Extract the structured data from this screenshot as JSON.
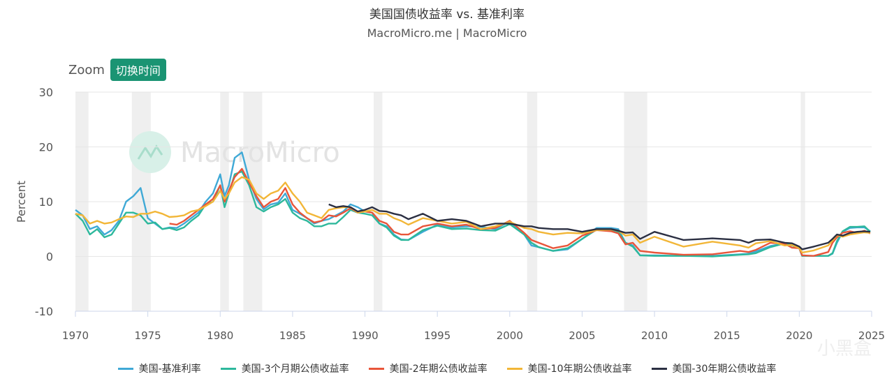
{
  "header": {
    "title": "美国国债收益率 vs. 基准利率",
    "subtitle": "MacroMicro.me | MacroMicro"
  },
  "zoom": {
    "label": "Zoom",
    "button": "切换时间"
  },
  "watermark": {
    "text": "MacroMicro"
  },
  "corner_logo": {
    "text": "小黑盒"
  },
  "chart_data": {
    "type": "line",
    "title": "美国国债收益率 vs. 基准利率",
    "xlabel": "",
    "ylabel": "Percent",
    "xlim": [
      1970,
      2025
    ],
    "ylim": [
      -10,
      30
    ],
    "x_ticks": [
      1970,
      1975,
      1980,
      1985,
      1990,
      1995,
      2000,
      2005,
      2010,
      2015,
      2020,
      2025
    ],
    "y_ticks": [
      -10,
      0,
      10,
      20,
      30
    ],
    "grid": true,
    "legend_position": "bottom",
    "recessions": [
      [
        1970.0,
        1970.9
      ],
      [
        1973.9,
        1975.2
      ],
      [
        1980.0,
        1980.6
      ],
      [
        1981.6,
        1982.9
      ],
      [
        1990.6,
        1991.2
      ],
      [
        2001.2,
        2001.9
      ],
      [
        2007.9,
        2009.5
      ],
      [
        2020.1,
        2020.4
      ]
    ],
    "series": [
      {
        "name": "美国-基准利率",
        "color": "#3fa9d6",
        "x": [
          1970.0,
          1970.5,
          1971.0,
          1971.5,
          1972.0,
          1972.5,
          1973.0,
          1973.5,
          1974.0,
          1974.5,
          1975.0,
          1975.5,
          1976.0,
          1976.5,
          1977.0,
          1977.5,
          1978.0,
          1978.5,
          1979.0,
          1979.5,
          1980.0,
          1980.3,
          1980.6,
          1981.0,
          1981.5,
          1982.0,
          1982.5,
          1983.0,
          1983.5,
          1984.0,
          1984.5,
          1985.0,
          1985.5,
          1986.0,
          1986.5,
          1987.0,
          1987.5,
          1988.0,
          1988.5,
          1989.0,
          1989.5,
          1990.0,
          1990.5,
          1991.0,
          1991.5,
          1992.0,
          1992.5,
          1993.0,
          1994.0,
          1995.0,
          1996.0,
          1997.0,
          1998.0,
          1999.0,
          2000.0,
          2001.0,
          2001.5,
          2002.0,
          2003.0,
          2004.0,
          2005.0,
          2006.0,
          2007.0,
          2007.5,
          2008.0,
          2008.5,
          2009.0,
          2010.0,
          2012.0,
          2014.0,
          2015.9,
          2016.5,
          2017.0,
          2018.0,
          2019.0,
          2019.5,
          2020.0,
          2020.2,
          2021.0,
          2022.0,
          2022.3,
          2022.6,
          2023.0,
          2023.5,
          2024.0,
          2024.5,
          2024.9
        ],
        "values": [
          8.5,
          7.5,
          5.0,
          5.5,
          4.0,
          4.8,
          6.5,
          10.0,
          11.0,
          12.5,
          7.0,
          6.0,
          5.0,
          5.3,
          5.2,
          6.0,
          7.0,
          8.0,
          10.0,
          11.5,
          15.0,
          11.0,
          13.0,
          18.0,
          19.0,
          14.0,
          10.5,
          8.6,
          9.5,
          9.8,
          11.5,
          8.5,
          7.8,
          7.0,
          6.0,
          6.5,
          6.8,
          7.5,
          8.2,
          9.5,
          9.0,
          8.2,
          8.0,
          6.0,
          5.5,
          4.0,
          3.1,
          3.0,
          4.5,
          5.8,
          5.3,
          5.5,
          5.4,
          5.0,
          6.4,
          4.0,
          2.0,
          1.7,
          1.0,
          1.3,
          3.2,
          5.2,
          5.2,
          5.0,
          2.5,
          2.0,
          0.2,
          0.2,
          0.1,
          0.1,
          0.4,
          0.5,
          0.9,
          1.9,
          2.4,
          2.2,
          1.5,
          0.1,
          0.1,
          0.1,
          0.5,
          2.5,
          4.5,
          5.2,
          5.3,
          5.3,
          4.6
        ]
      },
      {
        "name": "美国-3个月期公债收益率",
        "color": "#2db89c",
        "x": [
          1970.0,
          1970.5,
          1971.0,
          1971.5,
          1972.0,
          1972.5,
          1973.0,
          1973.5,
          1974.0,
          1974.5,
          1975.0,
          1975.5,
          1976.0,
          1976.5,
          1977.0,
          1977.5,
          1978.0,
          1978.5,
          1979.0,
          1979.5,
          1980.0,
          1980.3,
          1980.6,
          1981.0,
          1981.5,
          1982.0,
          1982.5,
          1983.0,
          1983.5,
          1984.0,
          1984.5,
          1985.0,
          1985.5,
          1986.0,
          1986.5,
          1987.0,
          1987.5,
          1988.0,
          1988.5,
          1989.0,
          1989.5,
          1990.0,
          1990.5,
          1991.0,
          1991.5,
          1992.0,
          1992.5,
          1993.0,
          1994.0,
          1995.0,
          1996.0,
          1997.0,
          1998.0,
          1999.0,
          2000.0,
          2001.0,
          2001.5,
          2002.0,
          2003.0,
          2004.0,
          2005.0,
          2006.0,
          2007.0,
          2007.5,
          2008.0,
          2008.5,
          2009.0,
          2010.0,
          2012.0,
          2014.0,
          2015.9,
          2016.5,
          2017.0,
          2018.0,
          2019.0,
          2019.5,
          2020.0,
          2020.2,
          2021.0,
          2022.0,
          2022.3,
          2022.6,
          2023.0,
          2023.5,
          2024.0,
          2024.5,
          2024.9
        ],
        "values": [
          7.8,
          6.5,
          4.0,
          5.0,
          3.5,
          4.0,
          6.0,
          8.0,
          8.0,
          7.5,
          6.0,
          6.2,
          5.0,
          5.2,
          4.8,
          5.3,
          6.5,
          7.5,
          9.5,
          10.0,
          13.0,
          9.0,
          11.5,
          15.0,
          15.5,
          13.0,
          9.0,
          8.2,
          9.0,
          9.5,
          10.5,
          8.0,
          7.0,
          6.5,
          5.5,
          5.5,
          6.0,
          6.0,
          7.2,
          8.5,
          8.0,
          7.8,
          7.5,
          6.0,
          5.3,
          3.8,
          3.0,
          3.0,
          4.8,
          5.6,
          5.0,
          5.1,
          4.8,
          4.7,
          5.9,
          4.0,
          2.5,
          1.7,
          1.0,
          1.5,
          3.2,
          4.9,
          4.8,
          4.5,
          2.5,
          1.8,
          0.2,
          0.1,
          0.1,
          0.0,
          0.3,
          0.4,
          0.6,
          1.7,
          2.4,
          2.0,
          1.5,
          0.1,
          0.1,
          0.1,
          0.6,
          2.8,
          4.6,
          5.4,
          5.4,
          5.5,
          4.5
        ]
      },
      {
        "name": "美国-2年期公债收益率",
        "color": "#e8553a",
        "x": [
          1976.5,
          1977.0,
          1977.5,
          1978.0,
          1978.5,
          1979.0,
          1979.5,
          1980.0,
          1980.3,
          1980.6,
          1981.0,
          1981.5,
          1982.0,
          1982.5,
          1983.0,
          1983.5,
          1984.0,
          1984.5,
          1985.0,
          1985.5,
          1986.0,
          1986.5,
          1987.0,
          1987.5,
          1988.0,
          1988.5,
          1989.0,
          1989.5,
          1990.0,
          1990.5,
          1991.0,
          1991.5,
          1992.0,
          1992.5,
          1993.0,
          1994.0,
          1995.0,
          1996.0,
          1997.0,
          1998.0,
          1999.0,
          2000.0,
          2001.0,
          2001.5,
          2002.0,
          2003.0,
          2004.0,
          2005.0,
          2006.0,
          2007.0,
          2007.5,
          2008.0,
          2008.5,
          2009.0,
          2010.0,
          2012.0,
          2014.0,
          2015.9,
          2016.5,
          2017.0,
          2018.0,
          2019.0,
          2019.5,
          2020.0,
          2020.2,
          2021.0,
          2022.0,
          2022.3,
          2022.6,
          2023.0,
          2023.5,
          2024.0,
          2024.5,
          2024.9
        ],
        "values": [
          6.0,
          5.8,
          6.5,
          7.5,
          8.5,
          9.5,
          10.5,
          13.0,
          10.0,
          12.0,
          14.5,
          16.0,
          13.5,
          11.0,
          9.0,
          10.0,
          10.5,
          12.5,
          9.5,
          8.0,
          7.0,
          6.2,
          6.5,
          7.5,
          7.3,
          8.0,
          8.8,
          8.0,
          8.2,
          8.0,
          6.5,
          6.0,
          4.5,
          4.0,
          4.0,
          5.5,
          6.0,
          5.5,
          5.8,
          5.0,
          5.2,
          6.5,
          4.3,
          3.0,
          2.5,
          1.5,
          2.0,
          3.8,
          4.8,
          4.6,
          4.2,
          2.2,
          2.5,
          1.0,
          0.7,
          0.3,
          0.4,
          1.0,
          0.8,
          1.2,
          2.5,
          2.3,
          1.6,
          1.5,
          0.2,
          0.1,
          0.8,
          2.5,
          3.5,
          4.3,
          4.6,
          4.3,
          4.7,
          4.2
        ]
      },
      {
        "name": "美国-10年期公债收益率",
        "color": "#f2b637",
        "x": [
          1970.0,
          1970.5,
          1971.0,
          1971.5,
          1972.0,
          1972.5,
          1973.0,
          1973.5,
          1974.0,
          1974.5,
          1975.0,
          1975.5,
          1976.0,
          1976.5,
          1977.0,
          1977.5,
          1978.0,
          1978.5,
          1979.0,
          1979.5,
          1980.0,
          1980.3,
          1980.6,
          1981.0,
          1981.5,
          1982.0,
          1982.5,
          1983.0,
          1983.5,
          1984.0,
          1984.5,
          1985.0,
          1985.5,
          1986.0,
          1986.5,
          1987.0,
          1987.5,
          1988.0,
          1988.5,
          1989.0,
          1989.5,
          1990.0,
          1990.5,
          1991.0,
          1991.5,
          1992.0,
          1992.5,
          1993.0,
          1994.0,
          1995.0,
          1996.0,
          1997.0,
          1998.0,
          1999.0,
          2000.0,
          2001.0,
          2001.5,
          2002.0,
          2003.0,
          2004.0,
          2005.0,
          2006.0,
          2007.0,
          2007.5,
          2008.0,
          2008.5,
          2009.0,
          2010.0,
          2012.0,
          2014.0,
          2015.9,
          2016.5,
          2017.0,
          2018.0,
          2019.0,
          2019.5,
          2020.0,
          2020.2,
          2021.0,
          2022.0,
          2022.3,
          2022.6,
          2023.0,
          2023.5,
          2024.0,
          2024.5,
          2024.9
        ],
        "values": [
          7.8,
          7.5,
          6.0,
          6.5,
          6.0,
          6.2,
          6.8,
          7.3,
          7.2,
          7.8,
          7.8,
          8.2,
          7.8,
          7.2,
          7.3,
          7.5,
          8.2,
          8.5,
          9.2,
          10.0,
          12.0,
          10.5,
          11.5,
          13.5,
          14.5,
          14.0,
          11.5,
          10.5,
          11.5,
          12.0,
          13.5,
          11.5,
          10.0,
          8.0,
          7.5,
          7.0,
          8.5,
          8.8,
          9.0,
          9.0,
          8.0,
          8.2,
          8.5,
          7.8,
          7.8,
          7.0,
          6.5,
          5.8,
          7.0,
          6.5,
          6.0,
          6.3,
          5.0,
          5.5,
          6.3,
          5.2,
          5.0,
          4.5,
          4.0,
          4.3,
          4.2,
          4.8,
          4.9,
          4.7,
          3.8,
          4.0,
          2.5,
          3.6,
          1.8,
          2.7,
          2.0,
          1.6,
          2.4,
          2.8,
          2.0,
          2.1,
          1.5,
          0.7,
          1.1,
          2.0,
          2.9,
          3.9,
          3.6,
          4.0,
          4.2,
          4.4,
          4.3
        ]
      },
      {
        "name": "美国-30年期公债收益率",
        "color": "#2b2f42",
        "x": [
          1987.5,
          1988.0,
          1988.5,
          1989.0,
          1989.5,
          1990.0,
          1990.5,
          1991.0,
          1991.5,
          1992.0,
          1992.5,
          1993.0,
          1994.0,
          1995.0,
          1996.0,
          1997.0,
          1998.0,
          1999.0,
          2000.0,
          2001.0,
          2001.5,
          2002.0,
          2003.0,
          2004.0,
          2005.0,
          2006.0,
          2007.0,
          2007.5,
          2008.0,
          2008.5,
          2009.0,
          2010.0,
          2012.0,
          2014.0,
          2015.9,
          2016.5,
          2017.0,
          2018.0,
          2019.0,
          2019.5,
          2020.0,
          2020.2,
          2021.0,
          2022.0,
          2022.3,
          2022.6,
          2023.0,
          2023.5,
          2024.0,
          2024.5,
          2024.9
        ],
        "values": [
          9.5,
          9.0,
          9.2,
          9.0,
          8.2,
          8.5,
          9.0,
          8.3,
          8.2,
          7.8,
          7.5,
          6.8,
          7.8,
          6.5,
          6.8,
          6.5,
          5.5,
          6.0,
          6.0,
          5.5,
          5.5,
          5.2,
          5.0,
          5.0,
          4.5,
          5.0,
          5.0,
          4.7,
          4.3,
          4.4,
          3.2,
          4.5,
          3.0,
          3.3,
          3.0,
          2.5,
          3.0,
          3.1,
          2.5,
          2.4,
          1.8,
          1.3,
          1.8,
          2.5,
          3.2,
          4.0,
          3.8,
          4.3,
          4.5,
          4.6,
          4.5
        ]
      }
    ]
  }
}
